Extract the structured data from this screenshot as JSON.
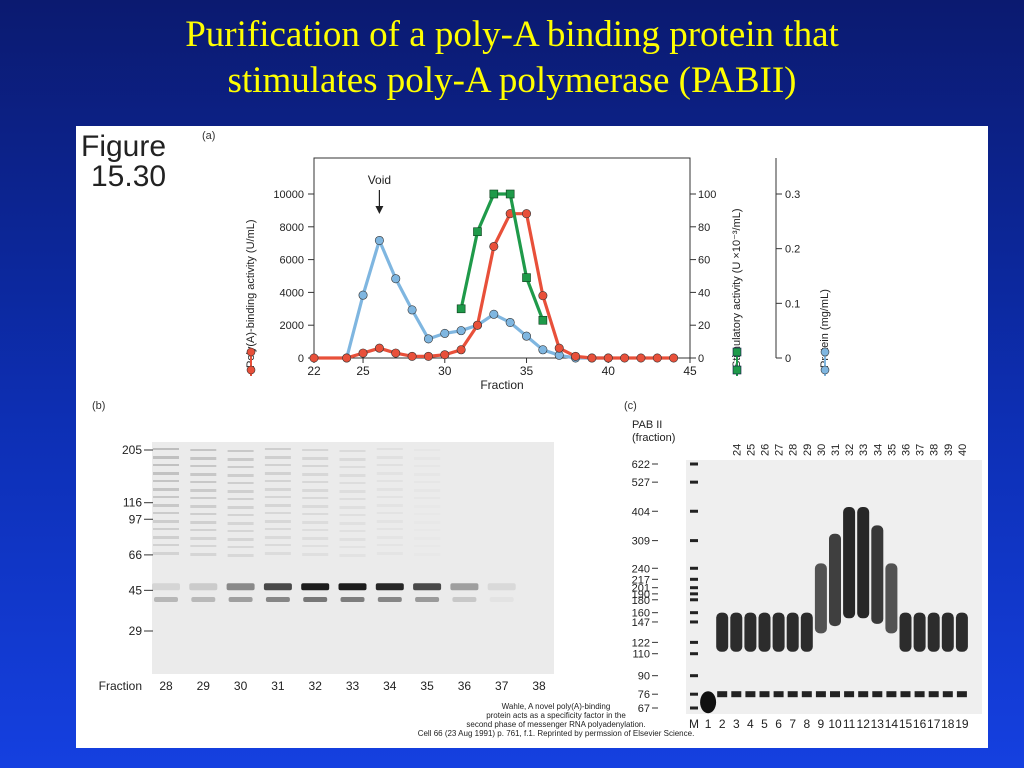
{
  "slide": {
    "title_line1": "Purification of a poly-A binding protein that",
    "title_line2": "stimulates poly-A polymerase (PABII)"
  },
  "figure": {
    "label_line1": "Figure",
    "label_line2": "15.30",
    "panel_a_tag": "(a)",
    "panel_b_tag": "(b)",
    "panel_c_tag": "(c)",
    "citation": [
      "Wahle, A novel poly(A)-binding",
      "protein acts as a specificity factor in the",
      "second phase of messenger RNA polyadenylation.",
      "Cell 66 (23 Aug 1991) p. 761, f.1. Reprinted by permssion of Elsevier Science."
    ]
  },
  "chart_data": {
    "type": "line",
    "xlabel": "Fraction",
    "xlim": [
      22,
      45
    ],
    "xticks": [
      22,
      25,
      30,
      35,
      40,
      45
    ],
    "annotation": "Void",
    "void_fraction": 26,
    "left_axis": {
      "label": "Poly(A)-binding activity (U/mL)",
      "ylim": [
        0,
        10000
      ],
      "ticks": [
        0,
        2000,
        4000,
        6000,
        8000,
        10000
      ]
    },
    "right_axis_1": {
      "label": "Stimulatory activity (U ×10⁻³/mL)",
      "ylim": [
        0,
        100
      ],
      "ticks": [
        0,
        20,
        40,
        60,
        80,
        100
      ]
    },
    "right_axis_2": {
      "label": "Protein (mg/mL)",
      "ylim": [
        0,
        0.3
      ],
      "ticks": [
        "0",
        "0.1",
        "0.2",
        "0.3"
      ]
    },
    "series": [
      {
        "name": "Poly(A)-binding activity (U/mL)",
        "axis": "left",
        "color": "#e8503a",
        "marker": "circle",
        "x": [
          22,
          24,
          25,
          26,
          27,
          28,
          29,
          30,
          31,
          32,
          33,
          34,
          35,
          36,
          37,
          38,
          39,
          40,
          41,
          42,
          43,
          44
        ],
        "y": [
          0,
          0,
          300,
          600,
          300,
          100,
          100,
          200,
          500,
          2000,
          6800,
          8800,
          8800,
          3800,
          600,
          100,
          0,
          0,
          0,
          0,
          0,
          0
        ]
      },
      {
        "name": "Stimulatory activity (U ×10⁻³/mL)",
        "axis": "right1",
        "color": "#1f9a4a",
        "marker": "square",
        "x": [
          31,
          32,
          33,
          34,
          35,
          36
        ],
        "y": [
          30,
          77,
          100,
          100,
          49,
          23
        ]
      },
      {
        "name": "Protein (mg/mL)",
        "axis": "right2",
        "color": "#7fb6e0",
        "marker": "circle",
        "x": [
          24,
          25,
          26,
          27,
          28,
          29,
          30,
          31,
          32,
          33,
          34,
          35,
          36,
          37,
          38,
          39,
          40
        ],
        "y": [
          0.0,
          0.115,
          0.215,
          0.145,
          0.088,
          0.035,
          0.045,
          0.05,
          0.06,
          0.08,
          0.065,
          0.04,
          0.015,
          0.005,
          0.0,
          0.0,
          0.0
        ]
      }
    ]
  },
  "gel_b": {
    "marker_labels": [
      "205",
      "116",
      "97",
      "66",
      "45",
      "29"
    ],
    "marker_kda": [
      205,
      116,
      97,
      66,
      45,
      29
    ],
    "lane_title": "Fraction",
    "lanes": [
      "28",
      "29",
      "30",
      "31",
      "32",
      "33",
      "34",
      "35",
      "36",
      "37",
      "38"
    ],
    "band_45_intensity": [
      0.1,
      0.15,
      0.45,
      0.75,
      0.95,
      0.95,
      0.9,
      0.75,
      0.35,
      0.08,
      0.0
    ]
  },
  "gel_c": {
    "header_line1": "PAB II",
    "header_line2": "(fraction)",
    "fraction_labels": [
      "24",
      "25",
      "26",
      "27",
      "28",
      "29",
      "30",
      "31",
      "32",
      "33",
      "34",
      "35",
      "36",
      "37",
      "38",
      "39",
      "40"
    ],
    "size_labels": [
      "622",
      "527",
      "404",
      "309",
      "240",
      "217",
      "201",
      "190",
      "180",
      "160",
      "147",
      "122",
      "110",
      "90",
      "76",
      "67"
    ],
    "size_nt": [
      622,
      527,
      404,
      309,
      240,
      217,
      201,
      190,
      180,
      160,
      147,
      122,
      110,
      90,
      76,
      67
    ],
    "lane_labels": [
      "M",
      "1",
      "2",
      "3",
      "4",
      "5",
      "6",
      "7",
      "8",
      "9",
      "10",
      "11",
      "12",
      "13",
      "14",
      "15",
      "16",
      "17",
      "18",
      "19"
    ]
  }
}
